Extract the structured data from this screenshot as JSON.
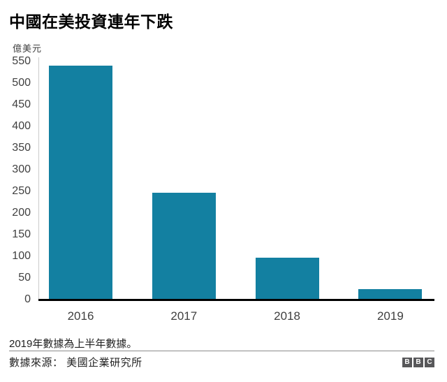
{
  "title": "中國在美投資連年下跌",
  "chart_data": {
    "type": "bar",
    "title": "中國在美投資連年下跌",
    "ylabel": "億美元",
    "xlabel": "",
    "categories": [
      "2016",
      "2017",
      "2018",
      "2019"
    ],
    "values": [
      540,
      247,
      97,
      25
    ],
    "ylim": [
      0,
      550
    ],
    "ytick_step": 50,
    "yticks": [
      0,
      50,
      100,
      150,
      200,
      250,
      300,
      350,
      400,
      450,
      500,
      550
    ],
    "bar_color": "#1380A1",
    "grid": false,
    "legend": false
  },
  "footnote": "2019年數據為上半年數據。",
  "source": "數據來源： 美國企業研究所",
  "logo": {
    "letters": [
      "B",
      "B",
      "C"
    ]
  },
  "colors": {
    "bar": "#1380A1",
    "axis_line": "#cccccc",
    "baseline": "#000000",
    "tick_text": "#404040",
    "logo_bg": "#58585a"
  }
}
